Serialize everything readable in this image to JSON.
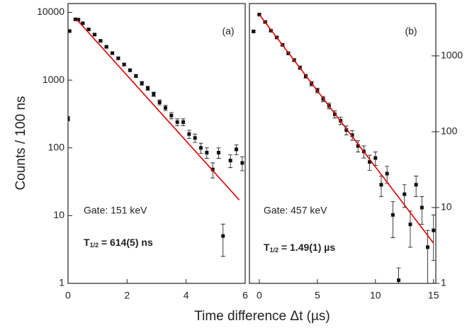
{
  "ylabel": "Counts / 100 ns",
  "xlabel": "Time difference Δt (µs)",
  "chart_data": [
    {
      "type": "scatter",
      "log_y": true,
      "xlim": [
        0,
        6
      ],
      "ylim": [
        1,
        13500
      ],
      "xticks": [
        0,
        2,
        4,
        6
      ],
      "yticks": [
        1,
        10,
        100,
        1000,
        10000
      ],
      "ytick_side": "left",
      "label": "(a)",
      "gate": "Gate: 151 keV",
      "halflife": {
        "symbol": "T",
        "subscript": "1/2",
        "text": " = 614(5) ns"
      },
      "series": [
        {
          "color": "#111111",
          "x": [
            0,
            0.05,
            0.25,
            0.35,
            0.5,
            0.7,
            0.9,
            1.1,
            1.3,
            1.5,
            1.7,
            1.9,
            2.1,
            2.3,
            2.5,
            2.7,
            2.9,
            3.1,
            3.3,
            3.5,
            3.7,
            3.9,
            4.1,
            4.3,
            4.5,
            4.7,
            4.9,
            5.1,
            5.25,
            5.5,
            5.7,
            5.9
          ],
          "values": [
            270,
            5300,
            7900,
            7800,
            6900,
            5600,
            4700,
            3800,
            3100,
            2500,
            2100,
            1700,
            1400,
            1150,
            900,
            760,
            620,
            470,
            390,
            300,
            240,
            240,
            160,
            140,
            100,
            85,
            48,
            85,
            5,
            65,
            95,
            60
          ],
          "errors": [
            20,
            150,
            200,
            200,
            180,
            160,
            140,
            120,
            110,
            100,
            90,
            80,
            70,
            60,
            55,
            50,
            45,
            40,
            35,
            32,
            28,
            28,
            22,
            20,
            17,
            15,
            12,
            15,
            2.5,
            14,
            16,
            14
          ]
        }
      ],
      "fit": {
        "color": "#e00000",
        "x": [
          0.3,
          5.8
        ],
        "values": [
          7800,
          17
        ]
      }
    },
    {
      "type": "scatter",
      "log_y": true,
      "xlim": [
        -0.85,
        15.2
      ],
      "ylim": [
        1,
        4900
      ],
      "xticks": [
        0,
        5,
        10,
        15
      ],
      "yticks": [
        1,
        10,
        100,
        1000
      ],
      "ytick_side": "right",
      "label": "(b)",
      "gate": "Gate: 457 keV",
      "halflife": {
        "symbol": "T",
        "subscript": "1/2",
        "text": " = 1.49(1) µs"
      },
      "series": [
        {
          "color": "#111111",
          "x": [
            -0.5,
            0,
            0.5,
            1,
            1.5,
            2,
            2.5,
            3,
            3.5,
            4,
            4.5,
            5,
            5.5,
            6,
            6.5,
            7,
            7.5,
            8,
            8.5,
            9,
            9.5,
            10,
            10.5,
            11,
            11.5,
            12,
            12.5,
            13,
            13.5,
            14,
            14.5,
            15
          ],
          "values": [
            2100,
            3500,
            2800,
            2150,
            1750,
            1400,
            1080,
            880,
            700,
            540,
            430,
            350,
            270,
            220,
            170,
            140,
            105,
            90,
            65,
            55,
            40,
            45,
            20,
            28,
            8,
            1.1,
            15,
            6,
            20,
            10,
            3,
            5
          ],
          "errors": [
            60,
            80,
            70,
            60,
            55,
            50,
            45,
            40,
            35,
            30,
            28,
            25,
            22,
            20,
            18,
            16,
            14,
            13,
            11,
            10,
            9,
            9,
            6,
            7,
            4,
            0.5,
            5,
            3,
            6,
            4,
            2,
            3
          ]
        }
      ],
      "fit": {
        "color": "#e00000",
        "x": [
          0,
          15
        ],
        "values": [
          3500,
          3.4
        ]
      }
    }
  ]
}
